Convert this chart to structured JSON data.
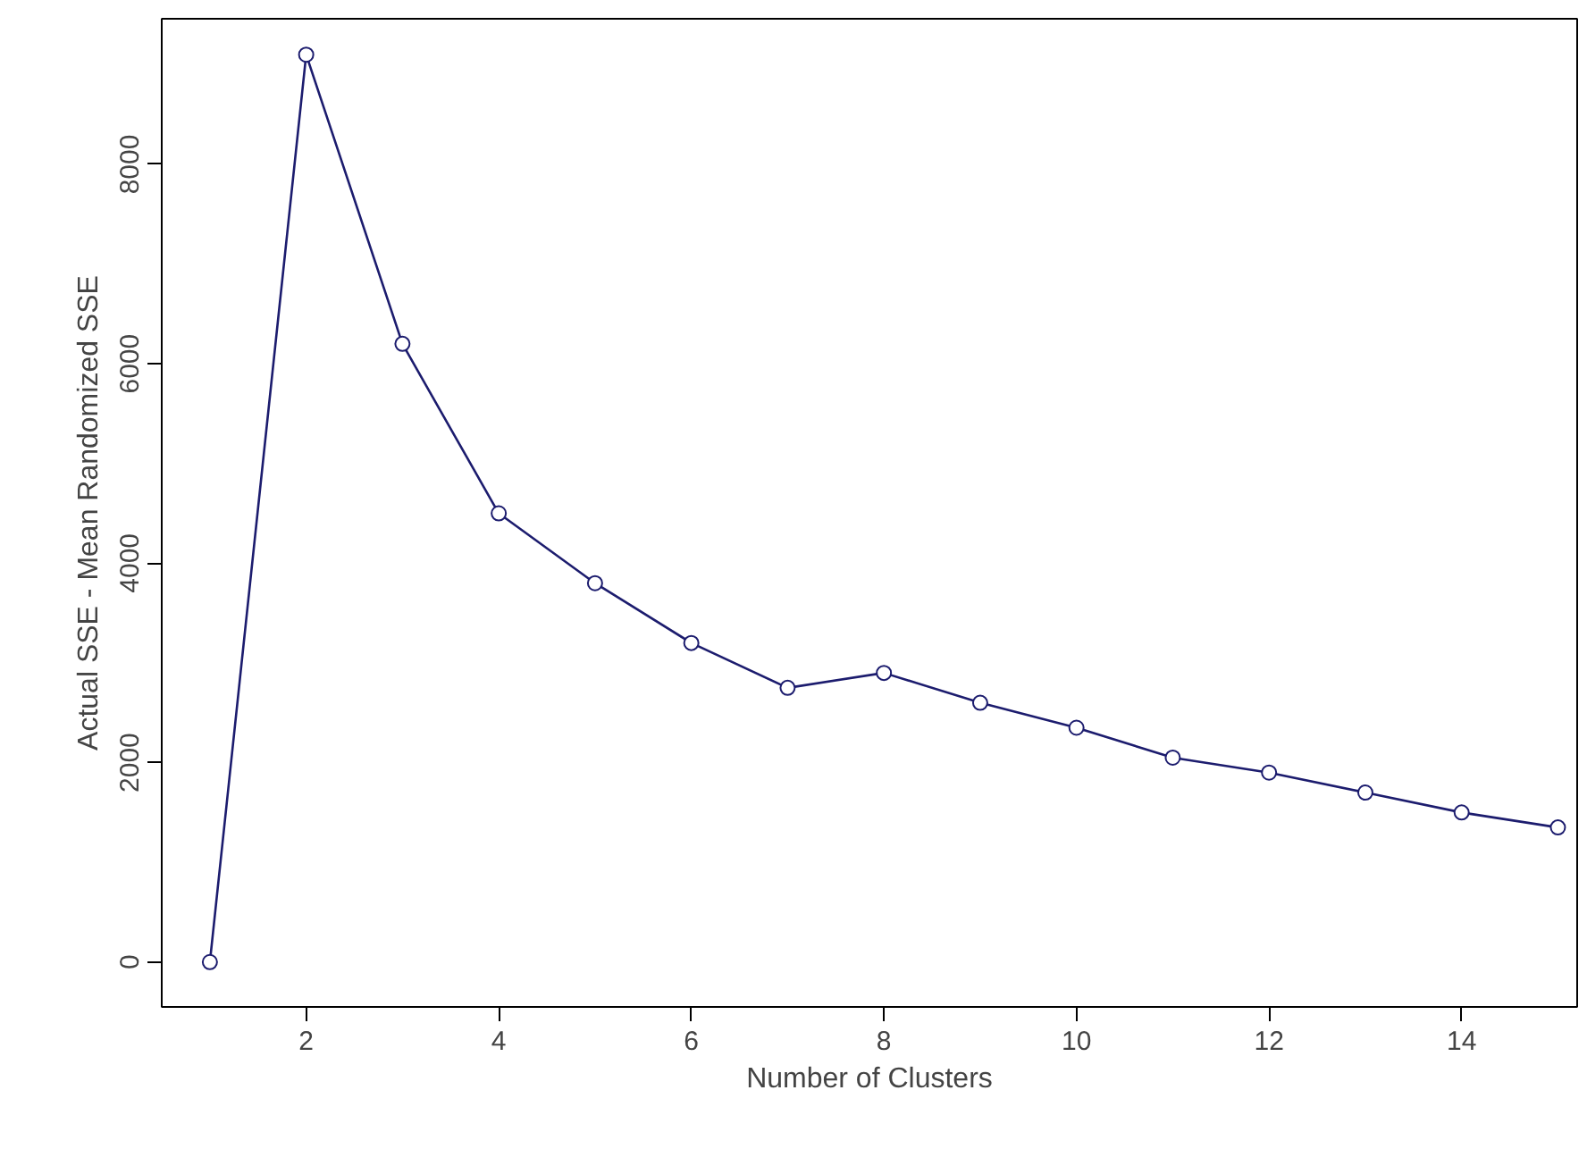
{
  "chart_data": {
    "type": "line",
    "xlabel": "Number of Clusters",
    "ylabel": "Actual SSE - Mean Randomized SSE",
    "x": [
      1,
      2,
      3,
      4,
      5,
      6,
      7,
      8,
      9,
      10,
      11,
      12,
      13,
      14,
      15
    ],
    "series": [
      {
        "color": "#1c1c6e",
        "values": [
          0,
          9100,
          6200,
          4500,
          3800,
          3200,
          2750,
          2900,
          2600,
          2350,
          2050,
          1900,
          1700,
          1500,
          1350
        ]
      }
    ],
    "xlim": [
      0.5,
      15.2
    ],
    "ylim": [
      -450,
      9460
    ],
    "xticks": [
      2,
      4,
      6,
      8,
      10,
      12,
      14
    ],
    "yticks": [
      0,
      2000,
      4000,
      6000,
      8000
    ],
    "grid": false,
    "marker": "circle",
    "line_style": "solid"
  }
}
